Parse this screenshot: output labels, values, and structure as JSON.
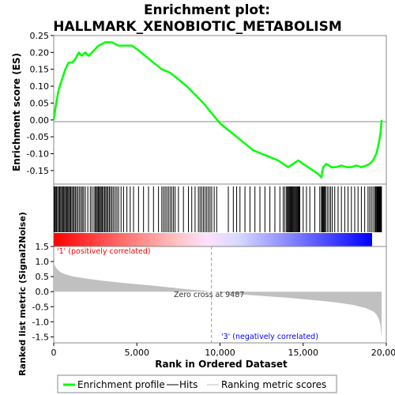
{
  "chart_data": {
    "type": "line",
    "title_line1": "Enrichment plot:",
    "title_line2": "HALLMARK_XENOBIOTIC_METABOLISM",
    "es_panel": {
      "ylabel": "Enrichment score (ES)",
      "ylim": [
        -0.19,
        0.25
      ],
      "yticks": [
        0.25,
        0.2,
        0.15,
        0.1,
        0.05,
        0.0,
        -0.05,
        -0.1,
        -0.15
      ],
      "ytick_labels": [
        "0.25",
        "0.20",
        "0.15",
        "0.10",
        "0.05",
        "0.00",
        "-0.05",
        "-0.10",
        "-0.15"
      ],
      "x": [
        0,
        150,
        300,
        500,
        700,
        900,
        1100,
        1300,
        1500,
        1700,
        1900,
        2100,
        2300,
        2500,
        2700,
        2900,
        3100,
        3300,
        3500,
        3700,
        3900,
        4100,
        4300,
        4500,
        4700,
        5000,
        5500,
        6000,
        6500,
        7000,
        7500,
        8000,
        8500,
        9000,
        9500,
        10000,
        10500,
        11000,
        11500,
        12000,
        12500,
        13000,
        13500,
        13800,
        14100,
        14400,
        14700,
        15000,
        15300,
        15600,
        15900,
        16100,
        16200,
        16400,
        16700,
        17000,
        17300,
        17600,
        17900,
        18200,
        18500,
        18800,
        19000,
        19200,
        19400,
        19550,
        19650,
        19720
      ],
      "values": [
        0.0,
        0.05,
        0.09,
        0.12,
        0.15,
        0.17,
        0.17,
        0.18,
        0.2,
        0.19,
        0.2,
        0.19,
        0.2,
        0.21,
        0.22,
        0.225,
        0.23,
        0.23,
        0.23,
        0.225,
        0.22,
        0.22,
        0.22,
        0.22,
        0.22,
        0.21,
        0.19,
        0.17,
        0.15,
        0.14,
        0.12,
        0.1,
        0.075,
        0.05,
        0.02,
        -0.01,
        -0.03,
        -0.05,
        -0.07,
        -0.09,
        -0.1,
        -0.11,
        -0.12,
        -0.13,
        -0.14,
        -0.13,
        -0.12,
        -0.13,
        -0.14,
        -0.15,
        -0.16,
        -0.17,
        -0.14,
        -0.13,
        -0.14,
        -0.14,
        -0.135,
        -0.14,
        -0.14,
        -0.135,
        -0.14,
        -0.135,
        -0.13,
        -0.12,
        -0.1,
        -0.07,
        -0.04,
        0.0
      ]
    },
    "hits": [
      20,
      60,
      110,
      170,
      230,
      300,
      360,
      420,
      480,
      540,
      600,
      660,
      720,
      780,
      840,
      900,
      960,
      1020,
      1090,
      1160,
      1230,
      1300,
      1380,
      1460,
      1550,
      1640,
      1720,
      1800,
      1900,
      2050,
      2200,
      2300,
      2420,
      2500,
      2560,
      2620,
      2680,
      2740,
      2800,
      2860,
      2920,
      2990,
      3060,
      3130,
      3200,
      3270,
      3350,
      3430,
      3510,
      3600,
      3700,
      3800,
      3900,
      4050,
      4200,
      4400,
      4600,
      4800,
      5100,
      5400,
      5700,
      6000,
      6300,
      6500,
      6600,
      6700,
      6800,
      6900,
      7000,
      7100,
      7200,
      7300,
      7500,
      7800,
      8100,
      8300,
      8500,
      8700,
      8800,
      8900,
      9000,
      9100,
      9200,
      9300,
      9400,
      9500,
      9650,
      9800,
      10500,
      10800,
      11000,
      11200,
      11500,
      11800,
      12100,
      12400,
      12700,
      13000,
      13300,
      13600,
      13800,
      13900,
      14000,
      14050,
      14100,
      14150,
      14200,
      14250,
      14300,
      14350,
      14400,
      14450,
      14500,
      14550,
      14600,
      14650,
      14700,
      14750,
      14800,
      15000,
      15200,
      15400,
      15700,
      16000,
      16100,
      16150,
      16200,
      16250,
      16300,
      16350,
      16450,
      16550,
      16650,
      16750,
      16900,
      17100,
      17300,
      17500,
      17700,
      17900,
      18100,
      18300,
      18500,
      18700,
      18900,
      19000,
      19100,
      19200,
      19300,
      19350,
      19400,
      19450,
      19480,
      19510,
      19540,
      19570,
      19600,
      19630,
      19660,
      19690,
      19710
    ],
    "metric_panel": {
      "ylabel": "Ranked list metric (Signal2Noise)",
      "ylim": [
        -1.7,
        1.5
      ],
      "yticks": [
        1.5,
        1.0,
        0.5,
        0.0,
        -0.5,
        -1.0,
        -1.5
      ],
      "ytick_labels": [
        "1.5",
        "1.0",
        "0.5",
        "0.0",
        "-0.5",
        "-1.0",
        "-1.5"
      ],
      "x": [
        0,
        50,
        150,
        300,
        500,
        800,
        1200,
        2000,
        3000,
        4000,
        5000,
        6000,
        7000,
        8000,
        9000,
        9487,
        10000,
        11000,
        12000,
        13000,
        14000,
        15000,
        16000,
        17000,
        18000,
        18800,
        19200,
        19400,
        19550,
        19650,
        19720
      ],
      "values": [
        1.0,
        0.88,
        0.78,
        0.69,
        0.62,
        0.56,
        0.5,
        0.43,
        0.36,
        0.3,
        0.25,
        0.2,
        0.14,
        0.08,
        0.03,
        0.0,
        -0.03,
        -0.08,
        -0.12,
        -0.16,
        -0.2,
        -0.25,
        -0.3,
        -0.36,
        -0.44,
        -0.55,
        -0.65,
        -0.75,
        -0.9,
        -1.1,
        -1.55
      ],
      "zero_cross_label": "Zero cross at 9487",
      "zero_cross": 9487,
      "pos_label": "'1' (positively correlated)",
      "neg_label": "'3' (negatively correlated)"
    },
    "xlabel": "Rank in Ordered Dataset",
    "xlim": [
      0,
      20000
    ],
    "xticks": [
      0,
      5000,
      10000,
      15000,
      20000
    ],
    "xtick_labels": [
      "0",
      "5,000",
      "10,000",
      "15,000",
      "20,000"
    ],
    "n_genes": 19720,
    "legend": [
      "Enrichment profile",
      "Hits",
      "Ranking metric scores"
    ],
    "colors": {
      "es_line": "#00ff00",
      "hit": "#000000",
      "metric_fill": "#c0c0c0",
      "pos_label": "#ff0000",
      "neg_label": "#0000ff",
      "grid": "#bbbbbb"
    }
  }
}
